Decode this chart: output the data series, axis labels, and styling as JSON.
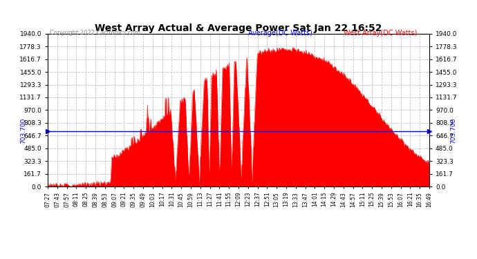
{
  "title": "West Array Actual & Average Power Sat Jan 22 16:52",
  "copyright": "Copyright 2022 Cartronics.com",
  "average_label": "Average(DC Watts)",
  "west_label": "West Array(DC Watts)",
  "average_value": 703.7,
  "ymax": 1940.0,
  "ymin": 0.0,
  "yticks": [
    0.0,
    161.7,
    323.3,
    485.0,
    646.7,
    808.3,
    970.0,
    1131.7,
    1293.3,
    1455.0,
    1616.7,
    1778.3,
    1940.0
  ],
  "background_color": "#ffffff",
  "fill_color": "#ff0000",
  "avg_line_color": "#0000ff",
  "title_color": "#000000",
  "avg_label_color": "#0000ff",
  "west_label_color": "#ff0000",
  "copyright_color": "#888888",
  "xtick_labels": [
    "07:27",
    "07:43",
    "07:57",
    "08:11",
    "08:25",
    "08:39",
    "08:53",
    "09:07",
    "09:21",
    "09:35",
    "09:49",
    "10:03",
    "10:17",
    "10:31",
    "10:45",
    "10:59",
    "11:13",
    "11:27",
    "11:41",
    "11:55",
    "12:09",
    "12:23",
    "12:37",
    "12:51",
    "13:05",
    "13:19",
    "13:33",
    "13:47",
    "14:01",
    "14:15",
    "14:29",
    "14:43",
    "14:57",
    "15:11",
    "15:25",
    "15:39",
    "15:53",
    "16:07",
    "16:21",
    "16:35",
    "16:49"
  ],
  "grid_color": "#bbbbbb",
  "tick_label_color": "#000000",
  "avg_arrow_color": "#0000ff"
}
